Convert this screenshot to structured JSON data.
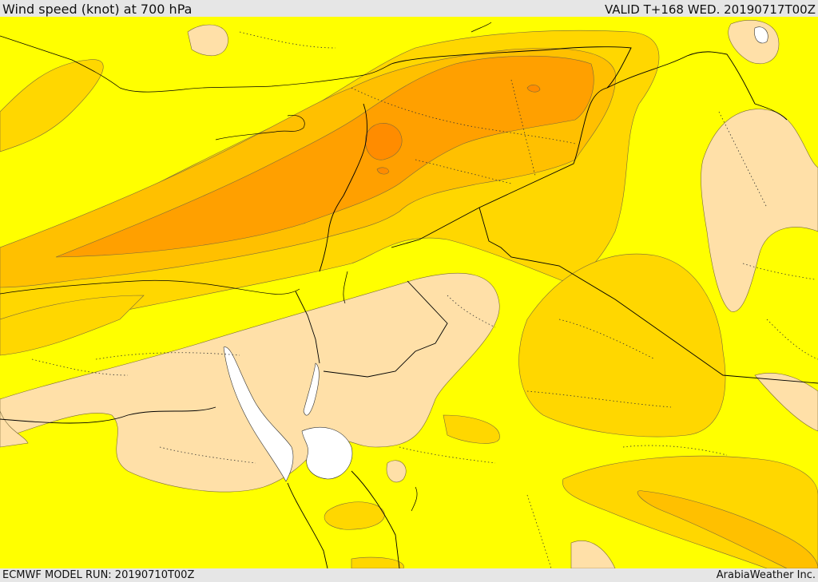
{
  "header": {
    "title": "Wind speed (knot) at 700 hPa",
    "valid_time": "VALID T+168 WED. 20190717T00Z"
  },
  "footer": {
    "model_run": "ECMWF MODEL RUN: 20190710T00Z",
    "credit": "ArabiaWeather Inc."
  },
  "colors": {
    "calm": "#ffe0a8",
    "light": "#ffff00",
    "moderate": "#ffd700",
    "fresh": "#ffc000",
    "strong": "#ffa000",
    "very_strong": "#ff8c00",
    "sea_gap": "#ffffff",
    "border_line": "#000000"
  }
}
